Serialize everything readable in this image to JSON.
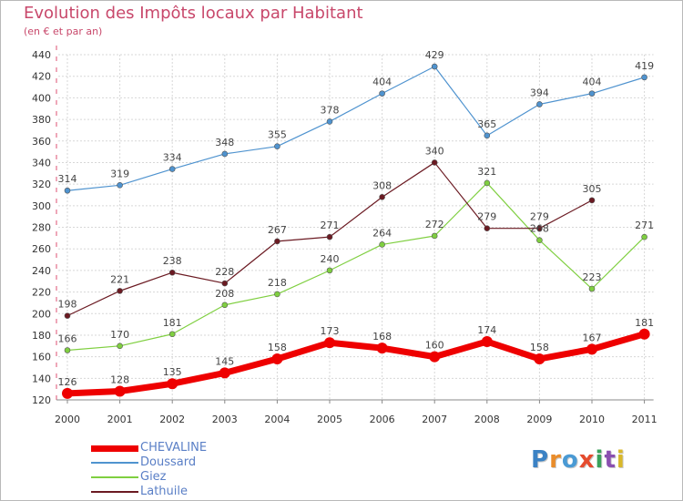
{
  "title": "Evolution des Impôts locaux par Habitant",
  "subtitle": "(en € et par an)",
  "logo": {
    "text": "Proxiti",
    "colors": [
      "#3b82c4",
      "#e98c2a",
      "#4a9ad4",
      "#e54b2e",
      "#3aa15b",
      "#8a4fb0",
      "#d9b82a"
    ]
  },
  "chart_data": {
    "type": "line",
    "title": "Evolution des Impôts locaux par Habitant",
    "subtitle": "(en € et par an)",
    "xlabel": "",
    "ylabel": "",
    "categories": [
      "2000",
      "2001",
      "2002",
      "2003",
      "2004",
      "2005",
      "2006",
      "2007",
      "2008",
      "2009",
      "2010",
      "2011"
    ],
    "ylim": [
      120,
      440
    ],
    "yticks": [
      120,
      140,
      160,
      180,
      200,
      220,
      240,
      260,
      280,
      300,
      320,
      340,
      360,
      380,
      400,
      420,
      440
    ],
    "grid": true,
    "legend_position": "bottom-left",
    "series": [
      {
        "name": "CHEVALINE",
        "color": "#ee0000",
        "values": [
          126,
          128,
          135,
          145,
          158,
          173,
          168,
          160,
          174,
          158,
          167,
          181
        ]
      },
      {
        "name": "Doussard",
        "color": "#4f93cf",
        "values": [
          314,
          319,
          334,
          348,
          355,
          378,
          404,
          429,
          365,
          394,
          404,
          419
        ]
      },
      {
        "name": "Giez",
        "color": "#7fcf40",
        "values": [
          166,
          170,
          181,
          208,
          218,
          240,
          264,
          272,
          321,
          268,
          223,
          271
        ]
      },
      {
        "name": "Lathuile",
        "color": "#6b1a22",
        "values": [
          198,
          221,
          238,
          228,
          267,
          271,
          308,
          340,
          279,
          279,
          305,
          null
        ]
      }
    ]
  }
}
